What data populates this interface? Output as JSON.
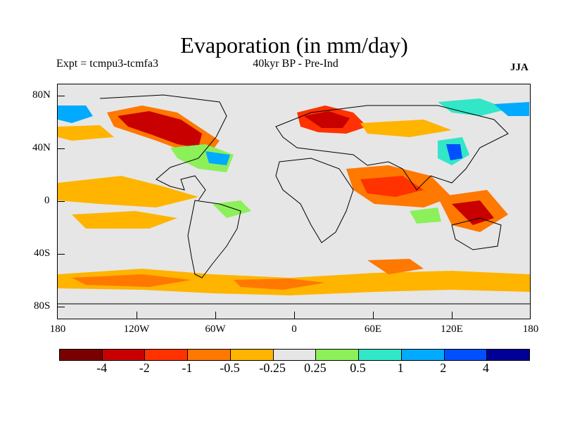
{
  "title": "Evaporation (in mm/day)",
  "experiment": "Expt = tcmpu3-tcmfa3",
  "subtitle": "40kyr BP - Pre-Ind",
  "season": "JJA",
  "lat_labels": [
    "80N",
    "40N",
    "0",
    "40S",
    "80S"
  ],
  "lon_labels": [
    "180",
    "120W",
    "60W",
    "0",
    "60E",
    "120E",
    "180"
  ],
  "colorbar": {
    "colors": [
      "#7a0000",
      "#c80000",
      "#ff3200",
      "#ff7800",
      "#ffb400",
      "#e6e6e6",
      "#8cf05a",
      "#32e6c8",
      "#00aaff",
      "#0050ff",
      "#000096"
    ],
    "labels": [
      "-4",
      "-2",
      "-1",
      "-0.5",
      "-0.25",
      "0.25",
      "0.5",
      "1",
      "2",
      "4"
    ]
  }
}
